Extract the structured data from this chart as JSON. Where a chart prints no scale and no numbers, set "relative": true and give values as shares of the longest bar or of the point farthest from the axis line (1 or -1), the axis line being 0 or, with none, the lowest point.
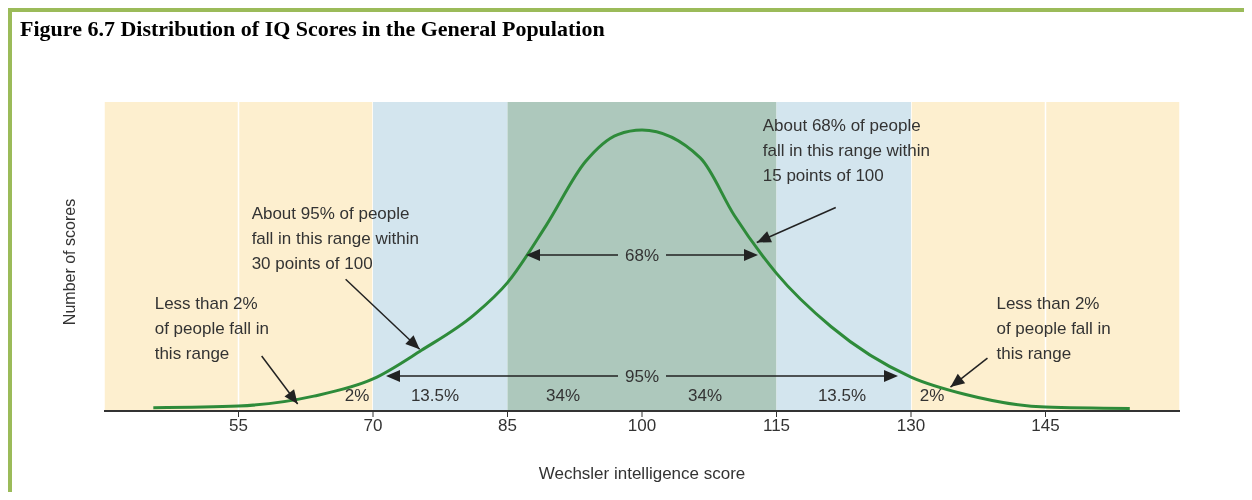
{
  "chart_data": {
    "type": "line",
    "title": "Figure 6.7 Distribution of IQ Scores in the General Population",
    "xlabel": "Wechsler intelligence score",
    "ylabel": "Number of scores",
    "relative": true,
    "x": [
      45.5,
      55,
      63.4,
      70,
      75.4,
      81.3,
      85,
      89.3,
      93.7,
      97.3,
      100,
      106.5,
      110.3,
      115,
      121.1,
      130,
      136.1,
      145,
      154.4
    ],
    "series": [
      {
        "color": "#2e8b3a",
        "values": [
          0.012,
          0.018,
          0.053,
          0.114,
          0.216,
          0.343,
          0.457,
          0.66,
          0.888,
          0.984,
          1,
          0.901,
          0.696,
          0.49,
          0.3,
          0.121,
          0.059,
          0.014,
          0.009
        ]
      }
    ],
    "xlim": [
      40,
      160
    ],
    "xticks": [
      55,
      70,
      85,
      100,
      115,
      130,
      145
    ],
    "grid": "x",
    "bands": [
      {
        "axis": "x",
        "from": 70,
        "to": 85,
        "color": "#d3e5ee"
      },
      {
        "axis": "x",
        "from": 85,
        "to": 115,
        "color": "#adc8bc"
      },
      {
        "axis": "x",
        "from": 115,
        "to": 130,
        "color": "#d3e5ee"
      }
    ],
    "annotations": [
      "2%",
      "13.5%",
      "34%",
      "34%",
      "13.5%",
      "2%",
      "68%",
      "95%",
      {
        "text": "About 95% of people\nfall in this range within\n30 points of 100",
        "x": 75.2,
        "y": 0.22
      },
      {
        "text": "About 68% of people\nfall in this range within\n15 points of 100",
        "x": 112.8,
        "y": 0.6
      },
      {
        "text": "Less than 2%\nof people fall in\nthis range",
        "x": 61.6,
        "y": 0.025
      },
      {
        "text": "Less than 2%\nof people fall in\nthis range",
        "x": 134.4,
        "y": 0.085
      }
    ]
  }
}
